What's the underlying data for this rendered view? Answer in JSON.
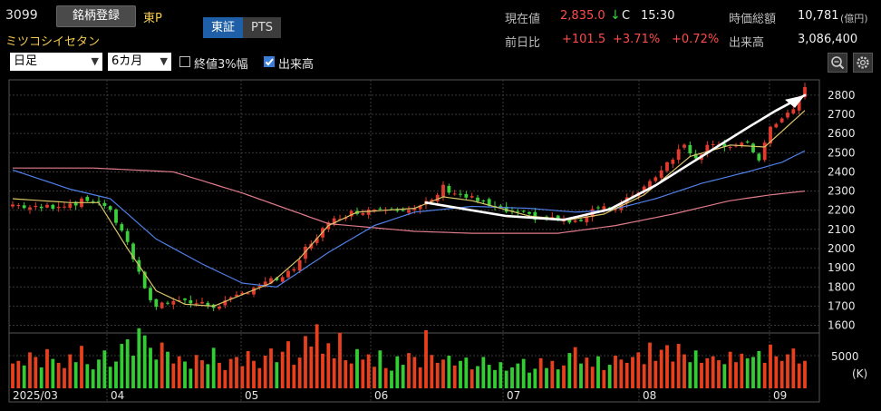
{
  "header": {
    "code": "3099",
    "register_label": "銘柄登録",
    "market": "東P",
    "name": "ミツコシイセタン",
    "tabs": [
      {
        "label": "東証"
      },
      {
        "label": "PTS"
      }
    ],
    "quote": {
      "current_label": "現在値",
      "current_value": "2,835.0",
      "arrow": "↓",
      "flag": "C",
      "time": "15:30",
      "prev_label": "前日比",
      "change": "+101.5",
      "change_pct": "+3.71%",
      "change_pct2": "+0.72%",
      "mcap_label": "時価総額",
      "mcap_value": "10,781",
      "mcap_unit": "(億円)",
      "volume_label": "出来高",
      "volume_value": "3,086,400"
    }
  },
  "controls": {
    "period_type": "日足",
    "range": "6カ月",
    "close_band_label": "終値3%幅",
    "close_band_checked": false,
    "volume_label": "出来高",
    "volume_checked": true
  },
  "icons": {
    "zoom": "zoom-icon",
    "settings": "gear-icon"
  },
  "colors": {
    "up": "#e23b2e",
    "down": "#3ccf3c",
    "ma_short": "#d9c46a",
    "ma_mid": "#4f7fe8",
    "ma_long": "#e07a8a",
    "vol_up": "#e8401c",
    "vol_down": "#33cc33"
  },
  "chart_data": {
    "type": "candlestick",
    "y_ticks": [
      1600,
      1700,
      1800,
      1900,
      2000,
      2100,
      2200,
      2300,
      2400,
      2500,
      2600,
      2700,
      2800
    ],
    "ylim": [
      1560,
      2880
    ],
    "x_tick_labels": [
      "2025/03",
      "04",
      "05",
      "06",
      "07",
      "08",
      "09"
    ],
    "volume_tick": "5000",
    "volume_unit": "(K)",
    "price_anchors": [
      [
        0,
        2230
      ],
      [
        4,
        2210
      ],
      [
        10,
        2235
      ],
      [
        14,
        2255
      ],
      [
        16,
        2230
      ],
      [
        19,
        2100
      ],
      [
        21,
        1950
      ],
      [
        23,
        1780
      ],
      [
        25,
        1700
      ],
      [
        28,
        1740
      ],
      [
        31,
        1720
      ],
      [
        35,
        1700
      ],
      [
        38,
        1730
      ],
      [
        42,
        1800
      ],
      [
        46,
        1840
      ],
      [
        49,
        1880
      ],
      [
        51,
        2000
      ],
      [
        54,
        2100
      ],
      [
        57,
        2170
      ],
      [
        61,
        2200
      ],
      [
        66,
        2220
      ],
      [
        70,
        2200
      ],
      [
        73,
        2250
      ],
      [
        75,
        2320
      ],
      [
        78,
        2280
      ],
      [
        81,
        2250
      ],
      [
        84,
        2210
      ],
      [
        88,
        2180
      ],
      [
        92,
        2160
      ],
      [
        96,
        2150
      ],
      [
        98,
        2130
      ],
      [
        100,
        2180
      ],
      [
        102,
        2230
      ],
      [
        105,
        2200
      ],
      [
        108,
        2280
      ],
      [
        111,
        2350
      ],
      [
        114,
        2450
      ],
      [
        117,
        2540
      ],
      [
        119,
        2480
      ],
      [
        122,
        2560
      ],
      [
        125,
        2530
      ],
      [
        128,
        2540
      ],
      [
        130,
        2470
      ],
      [
        132,
        2620
      ],
      [
        134,
        2690
      ],
      [
        136,
        2720
      ],
      [
        138,
        2835
      ]
    ],
    "ma_short_anchors": [
      [
        0,
        2260
      ],
      [
        10,
        2240
      ],
      [
        15,
        2240
      ],
      [
        20,
        2000
      ],
      [
        25,
        1780
      ],
      [
        30,
        1710
      ],
      [
        35,
        1700
      ],
      [
        40,
        1760
      ],
      [
        45,
        1820
      ],
      [
        50,
        1950
      ],
      [
        55,
        2120
      ],
      [
        60,
        2190
      ],
      [
        70,
        2210
      ],
      [
        75,
        2270
      ],
      [
        80,
        2250
      ],
      [
        90,
        2170
      ],
      [
        97,
        2150
      ],
      [
        103,
        2180
      ],
      [
        110,
        2280
      ],
      [
        118,
        2480
      ],
      [
        125,
        2540
      ],
      [
        131,
        2530
      ],
      [
        138,
        2720
      ]
    ],
    "ma_mid_anchors": [
      [
        0,
        2410
      ],
      [
        10,
        2310
      ],
      [
        17,
        2260
      ],
      [
        25,
        2050
      ],
      [
        33,
        1920
      ],
      [
        40,
        1820
      ],
      [
        46,
        1800
      ],
      [
        55,
        1980
      ],
      [
        63,
        2120
      ],
      [
        70,
        2190
      ],
      [
        80,
        2220
      ],
      [
        90,
        2210
      ],
      [
        98,
        2190
      ],
      [
        104,
        2200
      ],
      [
        112,
        2260
      ],
      [
        120,
        2340
      ],
      [
        128,
        2400
      ],
      [
        134,
        2450
      ],
      [
        138,
        2510
      ]
    ],
    "ma_long_anchors": [
      [
        0,
        2420
      ],
      [
        14,
        2420
      ],
      [
        28,
        2400
      ],
      [
        40,
        2290
      ],
      [
        55,
        2130
      ],
      [
        70,
        2090
      ],
      [
        80,
        2080
      ],
      [
        95,
        2080
      ],
      [
        105,
        2120
      ],
      [
        115,
        2180
      ],
      [
        125,
        2250
      ],
      [
        132,
        2280
      ],
      [
        138,
        2300
      ]
    ],
    "trend_line": [
      [
        72,
        2240
      ],
      [
        86,
        2170
      ],
      [
        96,
        2150
      ],
      [
        104,
        2205
      ],
      [
        112,
        2330
      ],
      [
        120,
        2480
      ],
      [
        128,
        2630
      ],
      [
        133,
        2720
      ],
      [
        138,
        2800
      ]
    ],
    "volume_pattern": [
      3.8,
      4.2,
      3.5,
      5.5,
      4.8,
      3.2,
      6.0,
      4.5,
      3.9,
      3.1,
      5.2,
      4.0,
      6.5,
      3.7,
      2.9,
      4.4,
      5.8,
      3.3,
      4.1,
      6.8,
      7.5,
      5.0,
      9.2,
      8.1,
      6.2,
      4.4,
      7.0,
      5.6,
      3.8,
      4.9,
      4.1,
      3.0,
      5.1,
      4.3,
      3.7,
      6.2,
      3.9,
      2.8,
      4.5,
      4.8,
      3.4,
      5.7,
      4.2,
      3.1,
      5.0,
      6.1,
      4.0,
      5.6,
      7.2,
      3.6,
      4.7,
      8.0,
      6.4,
      9.8,
      5.3,
      6.9,
      4.6,
      8.5,
      4.3,
      3.8,
      6.0,
      4.4,
      5.2,
      3.3,
      5.8,
      3.1,
      2.7,
      4.9,
      3.6,
      5.4,
      4.8,
      3.2,
      8.9,
      5.1,
      3.9,
      4.4,
      5.0,
      3.5,
      4.2,
      4.7,
      2.9,
      3.4,
      4.8,
      3.6,
      2.8,
      4.0,
      2.7,
      3.2,
      3.8,
      4.5,
      2.4,
      3.0,
      4.6,
      3.1,
      4.2,
      2.9,
      3.5,
      5.4,
      6.3,
      3.8,
      4.7,
      3.3,
      4.9,
      2.8,
      3.6,
      5.0,
      4.4,
      3.9,
      4.8,
      5.5,
      3.7,
      7.0,
      4.2,
      5.9,
      6.6,
      4.1,
      6.8,
      5.2,
      4.0,
      5.8,
      3.9,
      4.6,
      4.9,
      4.3,
      3.7,
      5.6,
      4.0,
      5.3,
      4.6,
      4.8,
      5.7,
      3.9,
      6.7,
      4.9,
      4.2,
      5.2,
      6.1
    ]
  }
}
